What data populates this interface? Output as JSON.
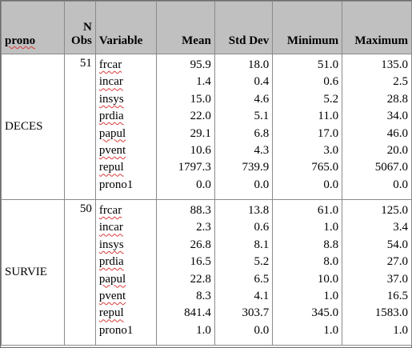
{
  "headers": {
    "prono": "prono",
    "n_line1": "N",
    "n_line2": "Obs",
    "variable": "Variable",
    "mean": "Mean",
    "std": "Std Dev",
    "min": "Minimum",
    "max": "Maximum"
  },
  "groups": [
    {
      "label": "DECES",
      "n": "51",
      "variables": [
        "frcar",
        "incar",
        "insys",
        "prdia",
        "papul",
        "pvent",
        "repul",
        "prono1"
      ],
      "mean": [
        "95.9",
        "1.4",
        "15.0",
        "22.0",
        "29.1",
        "10.6",
        "1797.3",
        "0.0"
      ],
      "std": [
        "18.0",
        "0.4",
        "4.6",
        "5.1",
        "6.8",
        "4.3",
        "739.9",
        "0.0"
      ],
      "min": [
        "51.0",
        "0.6",
        "5.2",
        "11.0",
        "17.0",
        "3.0",
        "765.0",
        "0.0"
      ],
      "max": [
        "135.0",
        "2.5",
        "28.8",
        "34.0",
        "46.0",
        "20.0",
        "5067.0",
        "0.0"
      ]
    },
    {
      "label": "SURVIE",
      "n": "50",
      "variables": [
        "frcar",
        "incar",
        "insys",
        "prdia",
        "papul",
        "pvent",
        "repul",
        "prono1"
      ],
      "mean": [
        "88.3",
        "2.3",
        "26.8",
        "16.5",
        "22.8",
        "8.3",
        "841.4",
        "1.0"
      ],
      "std": [
        "13.8",
        "0.6",
        "8.1",
        "5.2",
        "6.5",
        "4.1",
        "303.7",
        "0.0"
      ],
      "min": [
        "61.0",
        "1.0",
        "8.8",
        "8.0",
        "10.0",
        "1.0",
        "345.0",
        "1.0"
      ],
      "max": [
        "125.0",
        "3.4",
        "54.0",
        "27.0",
        "37.0",
        "16.5",
        "1583.0",
        "1.0"
      ]
    }
  ]
}
